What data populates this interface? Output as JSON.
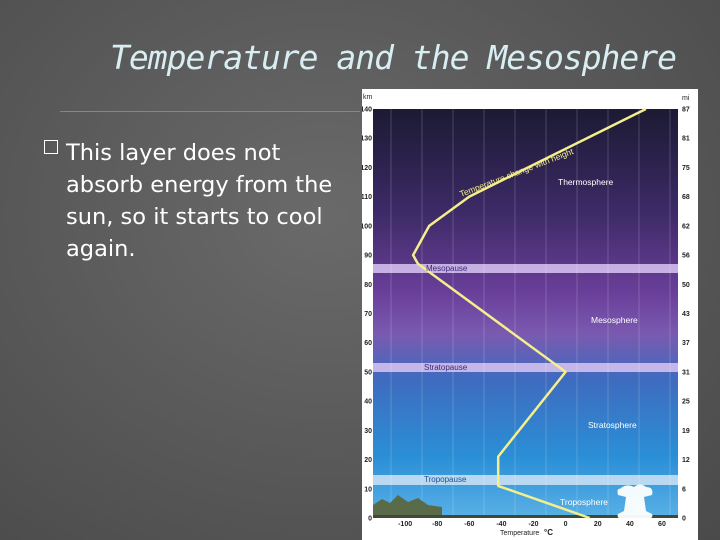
{
  "slide": {
    "title": "Temperature and the Mesosphere",
    "bullet": "This layer does not absorb energy from the sun, so it starts to cool again."
  },
  "figure": {
    "km_unit": "km",
    "mi_unit": "mi",
    "km_ticks": [
      "140",
      "130",
      "120",
      "110",
      "100",
      "90",
      "80",
      "70",
      "60",
      "50",
      "40",
      "30",
      "20",
      "10",
      "0"
    ],
    "mi_ticks": [
      "87",
      "81",
      "75",
      "68",
      "62",
      "56",
      "50",
      "43",
      "37",
      "31",
      "25",
      "19",
      "12",
      "6",
      "0"
    ],
    "temp_ticks": [
      "-100",
      "-80",
      "-60",
      "-40",
      "-20",
      "0",
      "20",
      "40",
      "60"
    ],
    "temp_axis_label": "Temperature",
    "temp_unit": "°C",
    "curve_label": "Temperature change with height",
    "layers": {
      "thermosphere": "Thermosphere",
      "mesopause": "Mesopause",
      "mesosphere": "Mesosphere",
      "stratopause": "Stratopause",
      "stratosphere": "Stratosphere",
      "tropopause": "Tropopause",
      "troposphere": "Troposphere"
    },
    "temperature_profile": [
      {
        "altitude_km": 0,
        "temperature_c": 15
      },
      {
        "altitude_km": 11,
        "temperature_c": -42
      },
      {
        "altitude_km": 21,
        "temperature_c": -42
      },
      {
        "altitude_km": 50,
        "temperature_c": 0
      },
      {
        "altitude_km": 87,
        "temperature_c": -92
      },
      {
        "altitude_km": 90,
        "temperature_c": -95
      },
      {
        "altitude_km": 100,
        "temperature_c": -85
      },
      {
        "altitude_km": 110,
        "temperature_c": -60
      },
      {
        "altitude_km": 140,
        "temperature_c": 50
      }
    ],
    "colors": {
      "curve": "#f4ef8a",
      "pause_band": "#d9c6f2",
      "troposphere_top": "#2a8fd6",
      "mesosphere": "#6a3f9a",
      "thermosphere_top": "#1c1a33"
    }
  }
}
